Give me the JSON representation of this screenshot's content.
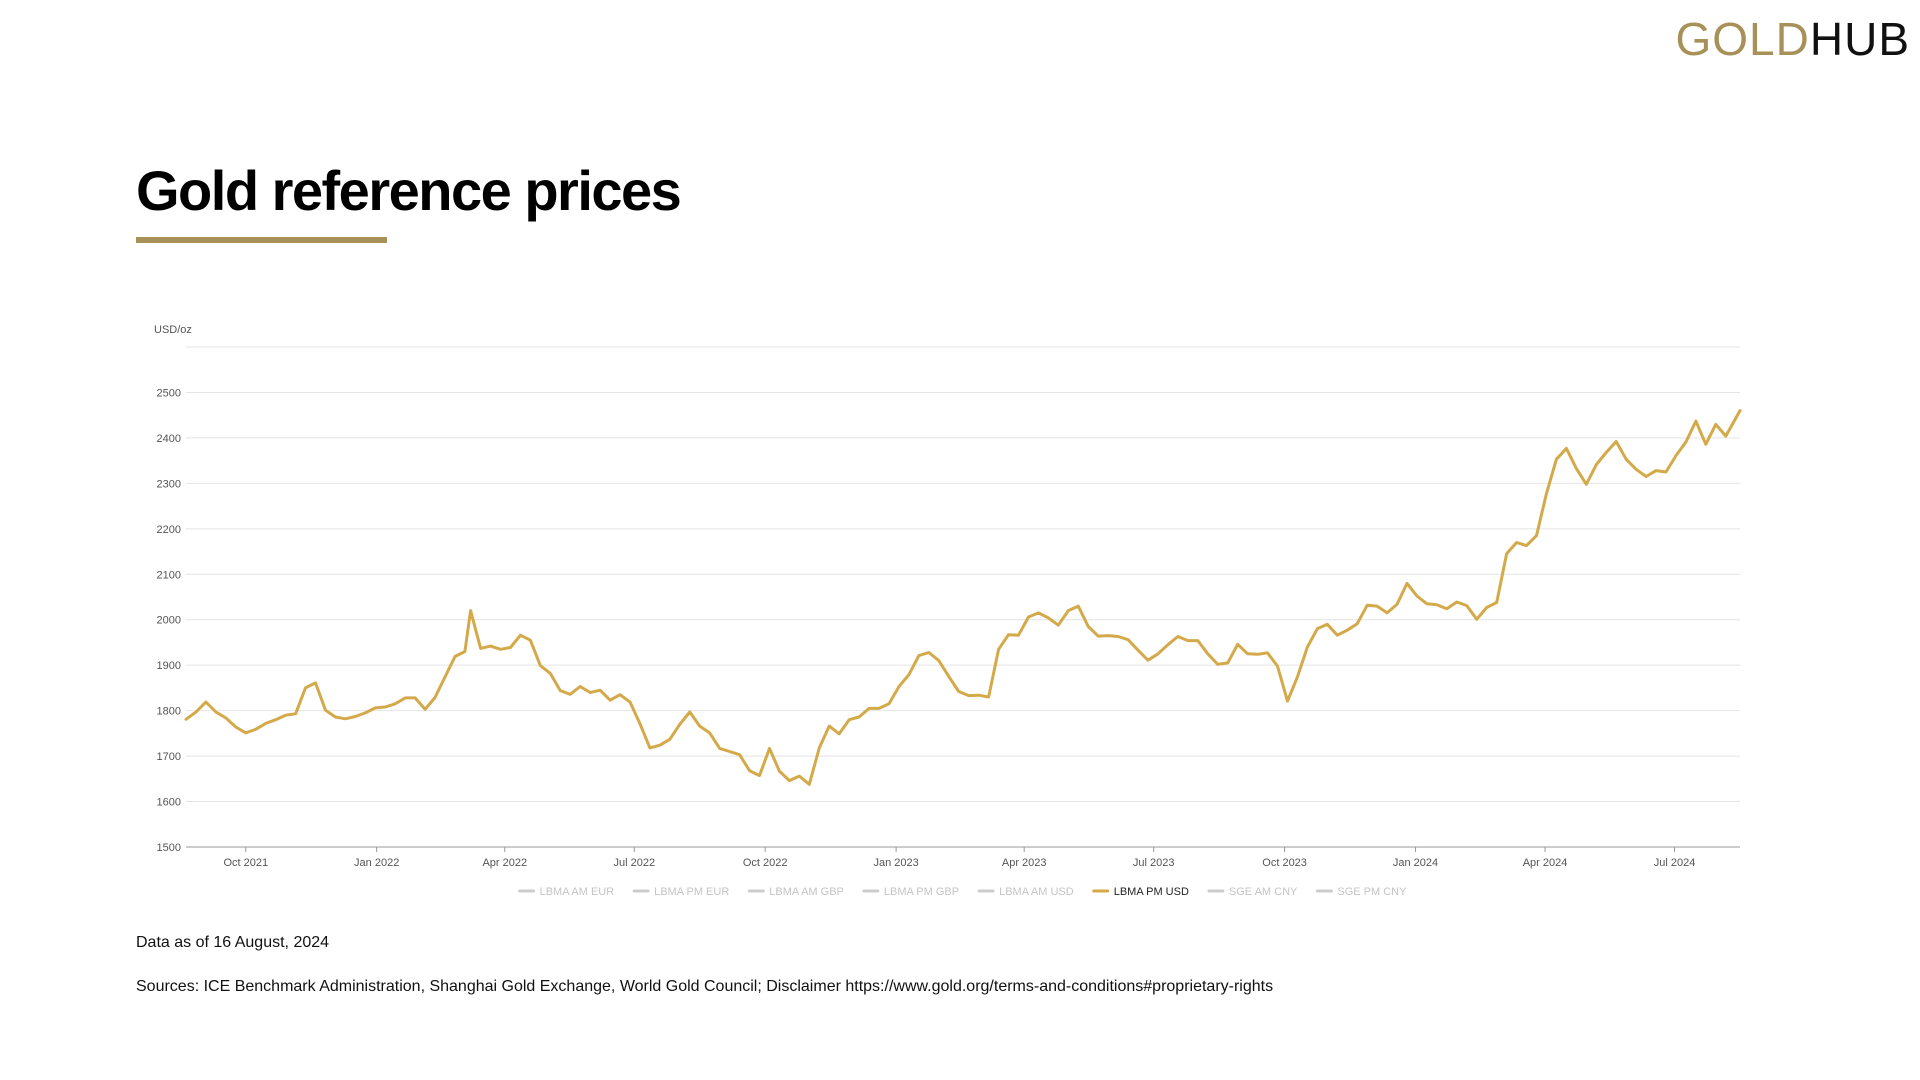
{
  "logo": {
    "part1": "GOLD",
    "part2": "HUB"
  },
  "title": "Gold reference prices",
  "colors": {
    "accent": "#a89158",
    "series": "#d4a94a",
    "legend_inactive": "#cccccc",
    "grid": "#e4e4e4"
  },
  "footnotes": {
    "data_as_of": "Data as of 16 August, 2024",
    "sources": "Sources: ICE Benchmark Administration, Shanghai Gold Exchange, World Gold Council; Disclaimer https://www.gold.org/terms-and-conditions#proprietary-rights"
  },
  "chart_data": {
    "type": "line",
    "ylabel": "USD/oz",
    "ylim": [
      1500,
      2600
    ],
    "yticks": [
      1500,
      1600,
      1700,
      1800,
      1900,
      2000,
      2100,
      2200,
      2300,
      2400,
      2500
    ],
    "xlim": [
      "2021-08-20",
      "2024-08-16"
    ],
    "xticks": [
      {
        "label": "Oct 2021",
        "date": "2021-10-01"
      },
      {
        "label": "Jan 2022",
        "date": "2022-01-01"
      },
      {
        "label": "Apr 2022",
        "date": "2022-04-01"
      },
      {
        "label": "Jul 2022",
        "date": "2022-07-01"
      },
      {
        "label": "Oct 2022",
        "date": "2022-10-01"
      },
      {
        "label": "Jan 2023",
        "date": "2023-01-01"
      },
      {
        "label": "Apr 2023",
        "date": "2023-04-01"
      },
      {
        "label": "Jul 2023",
        "date": "2023-07-01"
      },
      {
        "label": "Oct 2023",
        "date": "2023-10-01"
      },
      {
        "label": "Jan 2024",
        "date": "2024-01-01"
      },
      {
        "label": "Apr 2024",
        "date": "2024-04-01"
      },
      {
        "label": "Jul 2024",
        "date": "2024-07-01"
      }
    ],
    "grid": true,
    "legend_position": "bottom",
    "legend": [
      {
        "name": "LBMA AM EUR",
        "active": false
      },
      {
        "name": "LBMA PM EUR",
        "active": false
      },
      {
        "name": "LBMA AM GBP",
        "active": false
      },
      {
        "name": "LBMA PM GBP",
        "active": false
      },
      {
        "name": "LBMA AM USD",
        "active": false
      },
      {
        "name": "LBMA PM USD",
        "active": true
      },
      {
        "name": "SGE AM CNY",
        "active": false
      },
      {
        "name": "SGE PM CNY",
        "active": false
      }
    ],
    "series": [
      {
        "name": "LBMA PM USD",
        "points": [
          [
            "2021-08-20",
            1781
          ],
          [
            "2021-08-27",
            1797
          ],
          [
            "2021-09-03",
            1819
          ],
          [
            "2021-09-10",
            1797
          ],
          [
            "2021-09-17",
            1784
          ],
          [
            "2021-09-24",
            1764
          ],
          [
            "2021-10-01",
            1751
          ],
          [
            "2021-10-08",
            1759
          ],
          [
            "2021-10-15",
            1772
          ],
          [
            "2021-10-22",
            1780
          ],
          [
            "2021-10-29",
            1790
          ],
          [
            "2021-11-05",
            1793
          ],
          [
            "2021-11-12",
            1850
          ],
          [
            "2021-11-19",
            1861
          ],
          [
            "2021-11-26",
            1801
          ],
          [
            "2021-12-03",
            1786
          ],
          [
            "2021-12-10",
            1782
          ],
          [
            "2021-12-17",
            1787
          ],
          [
            "2021-12-24",
            1795
          ],
          [
            "2021-12-31",
            1806
          ],
          [
            "2022-01-07",
            1808
          ],
          [
            "2022-01-14",
            1815
          ],
          [
            "2022-01-21",
            1828
          ],
          [
            "2022-01-28",
            1828
          ],
          [
            "2022-02-04",
            1803
          ],
          [
            "2022-02-11",
            1829
          ],
          [
            "2022-02-18",
            1874
          ],
          [
            "2022-02-25",
            1919
          ],
          [
            "2022-03-04",
            1930
          ],
          [
            "2022-03-08",
            2020
          ],
          [
            "2022-03-15",
            1937
          ],
          [
            "2022-03-22",
            1942
          ],
          [
            "2022-03-29",
            1935
          ],
          [
            "2022-04-05",
            1939
          ],
          [
            "2022-04-12",
            1966
          ],
          [
            "2022-04-19",
            1955
          ],
          [
            "2022-04-26",
            1899
          ],
          [
            "2022-05-03",
            1882
          ],
          [
            "2022-05-10",
            1844
          ],
          [
            "2022-05-17",
            1836
          ],
          [
            "2022-05-24",
            1853
          ],
          [
            "2022-05-31",
            1840
          ],
          [
            "2022-06-07",
            1845
          ],
          [
            "2022-06-14",
            1823
          ],
          [
            "2022-06-21",
            1835
          ],
          [
            "2022-06-28",
            1819
          ],
          [
            "2022-07-05",
            1771
          ],
          [
            "2022-07-12",
            1718
          ],
          [
            "2022-07-19",
            1724
          ],
          [
            "2022-07-26",
            1737
          ],
          [
            "2022-08-02",
            1770
          ],
          [
            "2022-08-09",
            1797
          ],
          [
            "2022-08-16",
            1766
          ],
          [
            "2022-08-23",
            1751
          ],
          [
            "2022-08-30",
            1717
          ],
          [
            "2022-09-06",
            1710
          ],
          [
            "2022-09-13",
            1703
          ],
          [
            "2022-09-20",
            1668
          ],
          [
            "2022-09-27",
            1657
          ],
          [
            "2022-10-04",
            1717
          ],
          [
            "2022-10-11",
            1667
          ],
          [
            "2022-10-18",
            1646
          ],
          [
            "2022-10-25",
            1656
          ],
          [
            "2022-11-01",
            1638
          ],
          [
            "2022-11-08",
            1718
          ],
          [
            "2022-11-15",
            1766
          ],
          [
            "2022-11-22",
            1749
          ],
          [
            "2022-11-29",
            1780
          ],
          [
            "2022-12-06",
            1786
          ],
          [
            "2022-12-13",
            1805
          ],
          [
            "2022-12-20",
            1805
          ],
          [
            "2022-12-27",
            1815
          ],
          [
            "2023-01-03",
            1853
          ],
          [
            "2023-01-10",
            1879
          ],
          [
            "2023-01-17",
            1921
          ],
          [
            "2023-01-24",
            1928
          ],
          [
            "2023-01-31",
            1910
          ],
          [
            "2023-02-07",
            1875
          ],
          [
            "2023-02-14",
            1842
          ],
          [
            "2023-02-21",
            1833
          ],
          [
            "2023-02-28",
            1834
          ],
          [
            "2023-03-07",
            1830
          ],
          [
            "2023-03-14",
            1935
          ],
          [
            "2023-03-21",
            1967
          ],
          [
            "2023-03-28",
            1966
          ],
          [
            "2023-04-04",
            2006
          ],
          [
            "2023-04-11",
            2015
          ],
          [
            "2023-04-18",
            2004
          ],
          [
            "2023-04-25",
            1988
          ],
          [
            "2023-05-02",
            2020
          ],
          [
            "2023-05-09",
            2030
          ],
          [
            "2023-05-16",
            1985
          ],
          [
            "2023-05-23",
            1964
          ],
          [
            "2023-05-30",
            1965
          ],
          [
            "2023-06-06",
            1963
          ],
          [
            "2023-06-13",
            1956
          ],
          [
            "2023-06-20",
            1933
          ],
          [
            "2023-06-27",
            1911
          ],
          [
            "2023-07-04",
            1925
          ],
          [
            "2023-07-11",
            1945
          ],
          [
            "2023-07-18",
            1963
          ],
          [
            "2023-07-25",
            1954
          ],
          [
            "2023-08-01",
            1954
          ],
          [
            "2023-08-08",
            1925
          ],
          [
            "2023-08-15",
            1902
          ],
          [
            "2023-08-22",
            1905
          ],
          [
            "2023-08-29",
            1946
          ],
          [
            "2023-09-05",
            1925
          ],
          [
            "2023-09-12",
            1924
          ],
          [
            "2023-09-19",
            1927
          ],
          [
            "2023-09-26",
            1898
          ],
          [
            "2023-10-03",
            1821
          ],
          [
            "2023-10-10",
            1874
          ],
          [
            "2023-10-17",
            1940
          ],
          [
            "2023-10-24",
            1980
          ],
          [
            "2023-10-31",
            1990
          ],
          [
            "2023-11-07",
            1966
          ],
          [
            "2023-11-14",
            1977
          ],
          [
            "2023-11-21",
            1991
          ],
          [
            "2023-11-28",
            2032
          ],
          [
            "2023-12-05",
            2030
          ],
          [
            "2023-12-12",
            2015
          ],
          [
            "2023-12-19",
            2034
          ],
          [
            "2023-12-26",
            2080
          ],
          [
            "2024-01-02",
            2052
          ],
          [
            "2024-01-09",
            2035
          ],
          [
            "2024-01-16",
            2033
          ],
          [
            "2024-01-23",
            2024
          ],
          [
            "2024-01-30",
            2039
          ],
          [
            "2024-02-06",
            2031
          ],
          [
            "2024-02-13",
            2001
          ],
          [
            "2024-02-20",
            2027
          ],
          [
            "2024-02-27",
            2038
          ],
          [
            "2024-03-05",
            2145
          ],
          [
            "2024-03-12",
            2170
          ],
          [
            "2024-03-19",
            2163
          ],
          [
            "2024-03-26",
            2185
          ],
          [
            "2024-04-02",
            2278
          ],
          [
            "2024-04-09",
            2353
          ],
          [
            "2024-04-16",
            2377
          ],
          [
            "2024-04-23",
            2333
          ],
          [
            "2024-04-30",
            2298
          ],
          [
            "2024-05-07",
            2341
          ],
          [
            "2024-05-14",
            2368
          ],
          [
            "2024-05-21",
            2392
          ],
          [
            "2024-05-28",
            2353
          ],
          [
            "2024-06-04",
            2331
          ],
          [
            "2024-06-11",
            2315
          ],
          [
            "2024-06-18",
            2328
          ],
          [
            "2024-06-25",
            2325
          ],
          [
            "2024-07-02",
            2361
          ],
          [
            "2024-07-09",
            2391
          ],
          [
            "2024-07-16",
            2437
          ],
          [
            "2024-07-23",
            2386
          ],
          [
            "2024-07-30",
            2430
          ],
          [
            "2024-08-06",
            2404
          ],
          [
            "2024-08-16",
            2460
          ]
        ]
      }
    ]
  }
}
